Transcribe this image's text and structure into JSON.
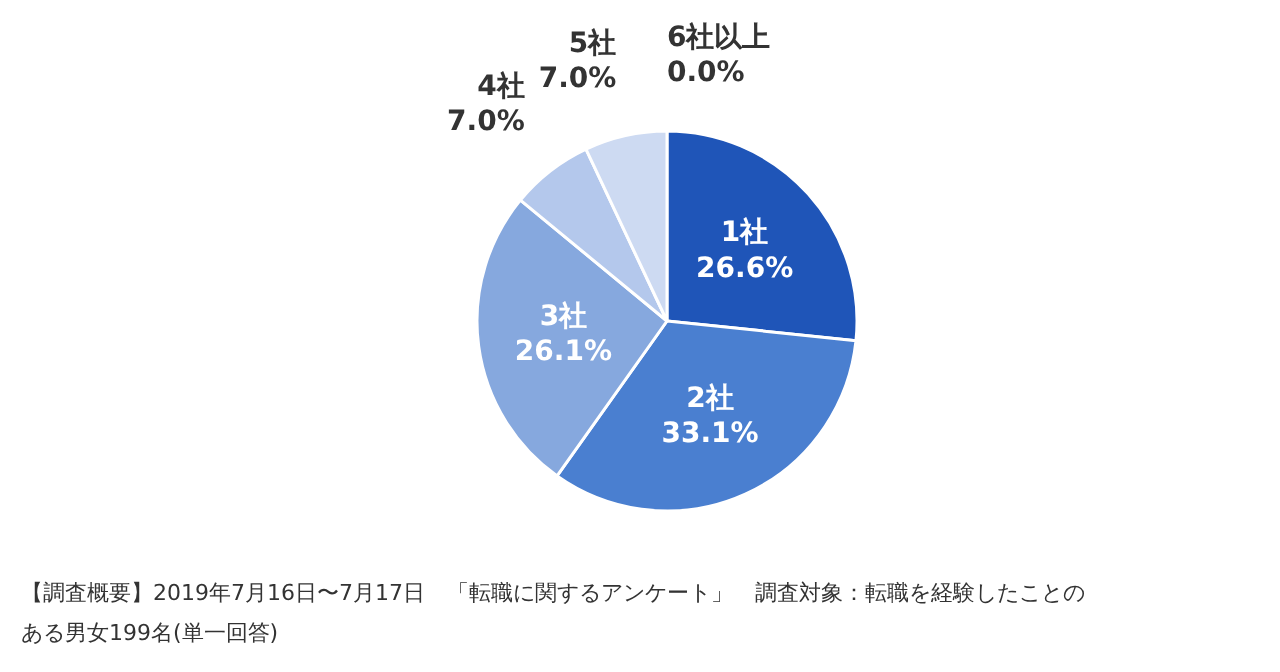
{
  "chart_data": {
    "type": "pie",
    "categories": [
      "1社",
      "2社",
      "3社",
      "4社",
      "5社",
      "6社以上"
    ],
    "values": [
      26.6,
      33.1,
      26.1,
      7.0,
      7.0,
      0.0
    ],
    "value_labels": [
      "26.6%",
      "33.1%",
      "26.1%",
      "7.0%",
      "7.0%",
      "0.0%"
    ],
    "colors": [
      "#1f55b8",
      "#4a7fd0",
      "#86a8de",
      "#b4c8ec",
      "#cddaf2",
      "#e3eaf8"
    ],
    "legend": false,
    "annotations": [
      "【調査概要】2019年7月16日〜7月17日　「転職に関するアンケート」　調査対象：転職を経験したことのある男女199名(単一回答)"
    ]
  }
}
